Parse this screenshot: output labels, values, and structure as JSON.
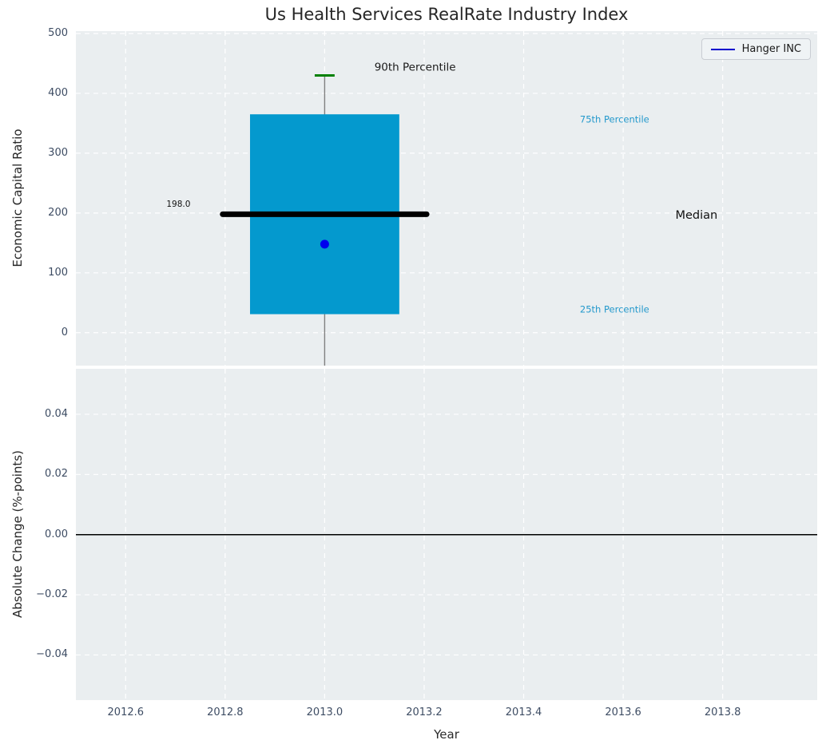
{
  "title": "Us Health Services RealRate Industry Index",
  "legend": {
    "label": "Hanger INC",
    "line_color": "#0000cd",
    "position": "upper right"
  },
  "colors": {
    "figure_bg": "#ffffff",
    "plot_bg": "#eaeef0",
    "grid": "#ffffff",
    "box_fill": "#0499ce",
    "median_line": "#000000",
    "whisker": "#808080",
    "whisker_cap": "#008000",
    "data_point": "#0000ee",
    "tick_label": "#3d4c63",
    "percentile_label": "#2499cc",
    "zero_line": "#000000"
  },
  "chart_data": [
    {
      "type": "box",
      "title": "Us Health Services RealRate Industry Index",
      "xlabel": "Year",
      "ylabel": "Economic Capital Ratio",
      "xlim": [
        2012.5,
        2013.99
      ],
      "ylim": [
        -55,
        504
      ],
      "xticks": [
        2012.6,
        2012.8,
        2013.0,
        2013.2,
        2013.4,
        2013.6,
        2013.8
      ],
      "xtick_labels": [
        "2012.6",
        "2012.8",
        "2013.0",
        "2013.2",
        "2013.4",
        "2013.6",
        "2013.8"
      ],
      "yticks": [
        0,
        100,
        200,
        300,
        400,
        500
      ],
      "ytick_labels": [
        "0",
        "100",
        "200",
        "300",
        "400",
        "500"
      ],
      "grid": true,
      "legend_position": "upper right",
      "box": {
        "x": 2013.0,
        "box_width": 0.3,
        "q1": 31,
        "median": 198,
        "q3": 365,
        "whisker_high": 430,
        "whisker_low_clipped": true,
        "cap_width": 0.04,
        "median_line_x": [
          2012.795,
          2013.205
        ],
        "median_label": "198.0"
      },
      "series": [
        {
          "name": "Hanger INC",
          "x": [
            2013.0
          ],
          "y": [
            148
          ],
          "marker": "circle",
          "color": "#0000ee"
        }
      ],
      "annotations": [
        {
          "text": "90th Percentile",
          "x": 2013.1,
          "y": 443,
          "size": 13.5,
          "color": "#1a1a1a"
        },
        {
          "text": "75th Percentile",
          "x": 2013.513,
          "y": 356,
          "size": 11.5,
          "color": "#2499cc"
        },
        {
          "text": "Median",
          "x": 2013.705,
          "y": 196,
          "size": 14.5,
          "color": "#111111"
        },
        {
          "text": "25th Percentile",
          "x": 2013.513,
          "y": 39,
          "size": 11.5,
          "color": "#2499cc"
        },
        {
          "text": "198.0",
          "x": 2012.682,
          "y": 215,
          "size": 10.5,
          "color": "#111111"
        }
      ]
    },
    {
      "type": "line",
      "title": "",
      "xlabel": "Year",
      "ylabel": "Absolute Change (%-points)",
      "xlim": [
        2012.5,
        2013.99
      ],
      "ylim": [
        -0.055,
        0.0551
      ],
      "xticks": [
        2012.6,
        2012.8,
        2013.0,
        2013.2,
        2013.4,
        2013.6,
        2013.8
      ],
      "xtick_labels": [
        "2012.6",
        "2012.8",
        "2013.0",
        "2013.2",
        "2013.4",
        "2013.6",
        "2013.8"
      ],
      "yticks": [
        0.04,
        0.02,
        0.0,
        -0.02,
        -0.04
      ],
      "ytick_labels": [
        "0.04",
        "0.02",
        "0.00",
        "−0.02",
        "−0.04"
      ],
      "grid": true,
      "zero_line": 0.0,
      "series": []
    }
  ]
}
